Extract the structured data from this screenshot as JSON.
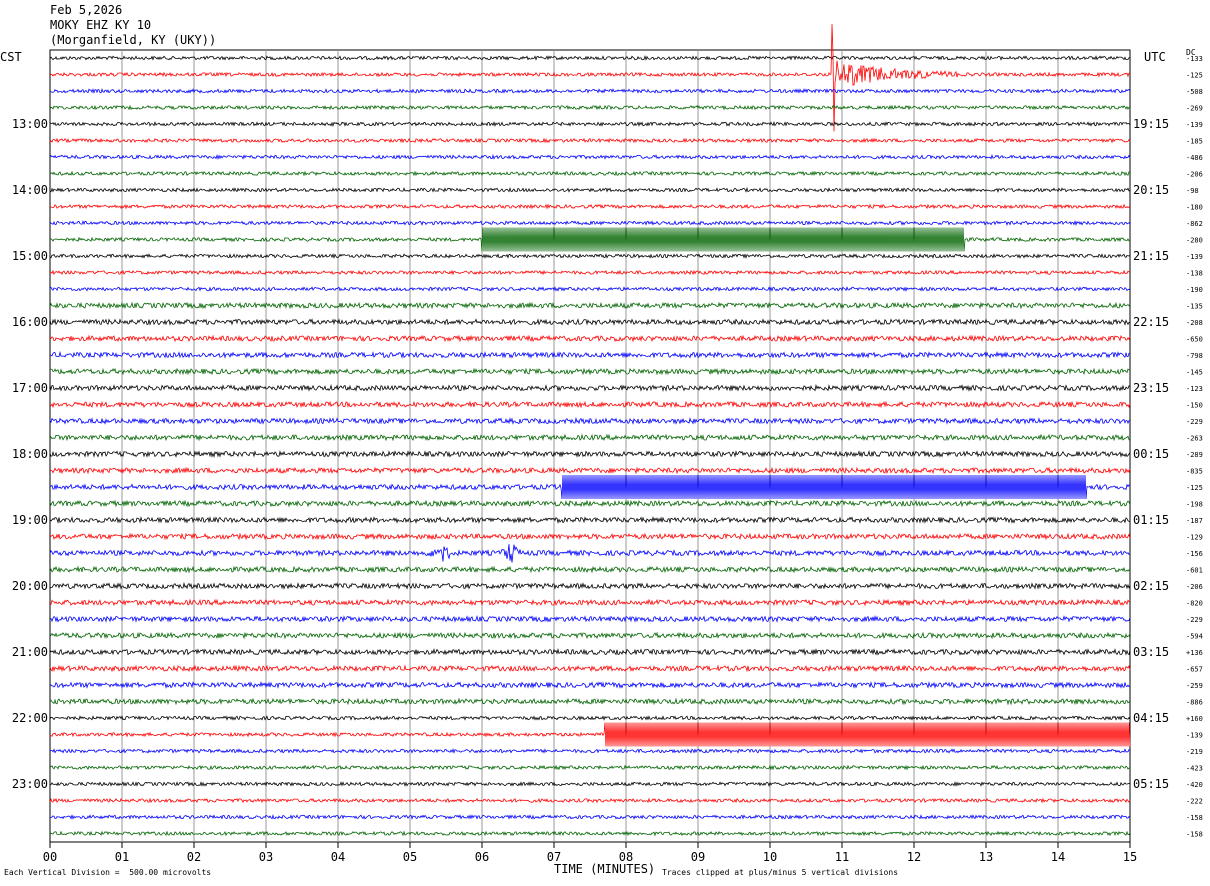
{
  "header": {
    "date": "Feb 5,2026",
    "station": "MOKY EHZ KY 10",
    "location": "(Morganfield, KY (UKY))"
  },
  "left_zone_label": "CST",
  "right_zone_label": "UTC",
  "dc_label": "DC",
  "footer": {
    "scale_note": "Each Vertical Division =  500.00 microvolts",
    "xlabel": "TIME (MINUTES)",
    "clip_note": "Traces clipped at plus/minus 5 vertical divisions"
  },
  "colors": {
    "trace_cycle": [
      "#000000",
      "#ff0000",
      "#0000ff",
      "#006400"
    ],
    "grid": "#999999"
  },
  "chart_data": {
    "type": "line",
    "title": "MOKY EHZ KY 10",
    "xlabel": "TIME (MINUTES)",
    "ylabel": "",
    "xlim": [
      0,
      15
    ],
    "x_ticks": [
      "00",
      "01",
      "02",
      "03",
      "04",
      "05",
      "06",
      "07",
      "08",
      "09",
      "10",
      "11",
      "12",
      "13",
      "14",
      "15"
    ],
    "trace_count": 48,
    "trace_colors_cycle": [
      "black",
      "red",
      "blue",
      "green"
    ],
    "left_hour_labels": [
      "13:00",
      "14:00",
      "15:00",
      "16:00",
      "17:00",
      "18:00",
      "19:00",
      "20:00",
      "21:00",
      "22:00",
      "23:00"
    ],
    "right_hour_labels": [
      "19:15",
      "20:15",
      "21:15",
      "22:15",
      "23:15",
      "00:15",
      "01:15",
      "02:15",
      "03:15",
      "04:15",
      "05:15"
    ],
    "dc_offsets": [
      "-133",
      "-125",
      "-508",
      "-269",
      "-139",
      "-185",
      "-486",
      "-206",
      "-98",
      "-180",
      "-862",
      "-280",
      "-139",
      "-138",
      "-190",
      "-135",
      "-208",
      "-650",
      "-798",
      "-145",
      "-123",
      "-150",
      "-229",
      "-263",
      "-289",
      "-835",
      "-125",
      "-198",
      "-187",
      "-129",
      "-156",
      "-601",
      "-206",
      "-820",
      "-229",
      "-594",
      "+136",
      "-657",
      "-259",
      "-886",
      "+160",
      "-139",
      "-219",
      "-423",
      "-420",
      "-222",
      "-158",
      "-158"
    ],
    "annotations": [
      {
        "type": "earthquake",
        "trace": 1,
        "start_min": 10.85,
        "end_min": 12.6
      },
      {
        "type": "clipped-oscillation",
        "trace": 11,
        "start_min": 6.0,
        "end_min": 12.7
      },
      {
        "type": "clipped-oscillation",
        "trace": 26,
        "start_min": 7.1,
        "end_min": 14.4
      },
      {
        "type": "burst",
        "trace": 30,
        "start_min": 5.25,
        "end_min": 5.6
      },
      {
        "type": "burst",
        "trace": 30,
        "start_min": 6.25,
        "end_min": 6.55
      },
      {
        "type": "clipped-oscillation",
        "trace": 41,
        "start_min": 7.7,
        "end_min": 15.0
      }
    ]
  }
}
